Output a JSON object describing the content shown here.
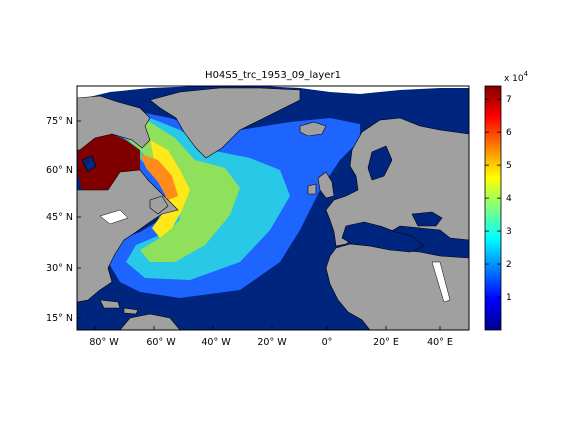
{
  "title": "H04S5_trc_1953_09_layer1",
  "map": {
    "lat_ticks": [
      "15° N",
      "30° N",
      "45° N",
      "60° N",
      "75° N"
    ],
    "lon_ticks": [
      "80° W",
      "60° W",
      "40° W",
      "20° W",
      "0°",
      "20° E",
      "40° E"
    ],
    "colors": {
      "land": "#a0a0a0",
      "ocean_low": "#00257f",
      "frame": "#000000"
    }
  },
  "colorbar": {
    "multiplier": "x 10",
    "exponent": "4",
    "ticks": [
      "1",
      "2",
      "3",
      "4",
      "5",
      "6",
      "7"
    ],
    "max_value": 74000,
    "colormap": "jet"
  }
}
